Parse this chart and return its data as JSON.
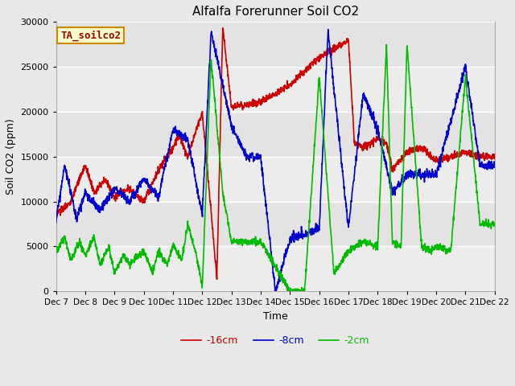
{
  "title": "Alfalfa Forerunner Soil CO2",
  "xlabel": "Time",
  "ylabel": "Soil CO2 (ppm)",
  "ylim": [
    0,
    30000
  ],
  "yticks": [
    0,
    5000,
    10000,
    15000,
    20000,
    25000,
    30000
  ],
  "legend_label": "TA_soilco2",
  "series_labels": [
    "-16cm",
    "-8cm",
    "-2cm"
  ],
  "series_colors": [
    "#cc0000",
    "#0000cc",
    "#00bb00"
  ],
  "background_color": "#e8e8e8",
  "plot_bg_color": "#e8e8e8",
  "x_tick_labels": [
    "Dec 7",
    "Dec 8",
    "Dec 9",
    "Dec 10",
    "Dec 11",
    "Dec 12",
    "Dec 13",
    "Dec 14",
    "Dec 15",
    "Dec 16",
    "Dec 17",
    "Dec 18",
    "Dec 19",
    "Dec 20",
    "Dec 21",
    "Dec 22"
  ],
  "line_width": 1.2,
  "figsize": [
    6.4,
    4.8
  ],
  "dpi": 100
}
